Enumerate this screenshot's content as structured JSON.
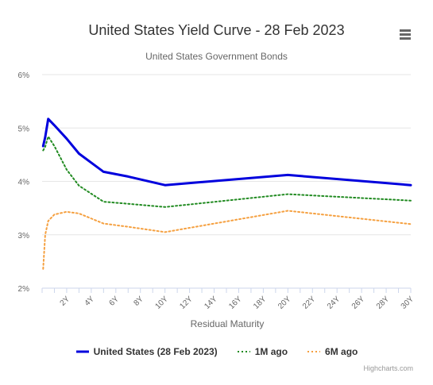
{
  "chart_data": {
    "type": "line",
    "title": "United States Yield Curve - 28 Feb 2023",
    "subtitle": "United States Government Bonds",
    "xlabel": "Residual Maturity",
    "ylabel": "",
    "xlim": [
      0,
      30
    ],
    "ylim": [
      2,
      6
    ],
    "y_ticks": [
      2,
      3,
      4,
      5,
      6
    ],
    "y_tick_labels": [
      "2%",
      "3%",
      "4%",
      "5%",
      "6%"
    ],
    "x_ticks": [
      2,
      4,
      6,
      8,
      10,
      12,
      14,
      16,
      18,
      20,
      22,
      24,
      26,
      28,
      30
    ],
    "x_tick_labels": [
      "2Y",
      "4Y",
      "6Y",
      "8Y",
      "10Y",
      "12Y",
      "14Y",
      "16Y",
      "18Y",
      "20Y",
      "22Y",
      "24Y",
      "26Y",
      "28Y",
      "30Y"
    ],
    "grid": true,
    "legend_position": "bottom",
    "series": [
      {
        "name": "United States (28 Feb 2023)",
        "color": "#0000dd",
        "style": "solid",
        "x": [
          0.0833,
          0.25,
          0.5,
          1,
          2,
          3,
          5,
          7,
          10,
          20,
          30
        ],
        "y": [
          4.66,
          4.83,
          5.17,
          5.05,
          4.8,
          4.52,
          4.18,
          4.09,
          3.93,
          4.12,
          3.93
        ]
      },
      {
        "name": "1M ago",
        "color": "#228b22",
        "style": "dotted",
        "x": [
          0.0833,
          0.25,
          0.5,
          1,
          2,
          3,
          5,
          7,
          10,
          20,
          30
        ],
        "y": [
          4.58,
          4.65,
          4.84,
          4.66,
          4.22,
          3.92,
          3.62,
          3.58,
          3.52,
          3.76,
          3.64
        ]
      },
      {
        "name": "6M ago",
        "color": "#f5a040",
        "style": "dotted",
        "x": [
          0.0833,
          0.25,
          0.5,
          1,
          2,
          3,
          5,
          7,
          10,
          20,
          30
        ],
        "y": [
          2.36,
          3.0,
          3.26,
          3.38,
          3.43,
          3.4,
          3.21,
          3.15,
          3.05,
          3.45,
          3.2
        ]
      }
    ]
  },
  "credits": "Highcharts.com",
  "menu_icon": "hamburger-menu-icon"
}
